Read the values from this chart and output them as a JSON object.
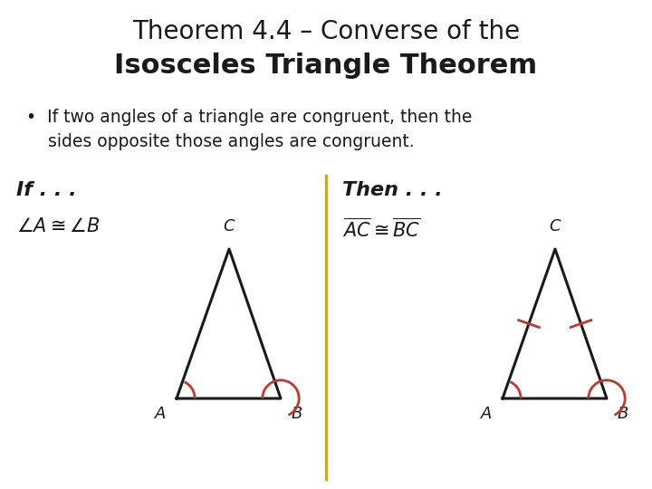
{
  "title_line1": "Theorem 4.4 – Converse of the",
  "title_line2": "Isosceles Triangle Theorem",
  "bullet_line1": "•  If two angles of a triangle are congruent, then the",
  "bullet_line2": "    sides opposite those angles are congruent.",
  "if_label": "If . . .",
  "then_label": "Then . . .",
  "bg_color": "#ffffff",
  "text_color": "#1a1a1a",
  "triangle_color": "#1a1a1a",
  "arc_color": "#c0392b",
  "tick_color": "#c0392b",
  "divider_color": "#c8b400",
  "title1_fontsize": 20,
  "title2_fontsize": 22,
  "bullet_fontsize": 13.5,
  "if_then_fontsize": 16,
  "math_fontsize": 15,
  "vertex_label_fontsize": 13
}
